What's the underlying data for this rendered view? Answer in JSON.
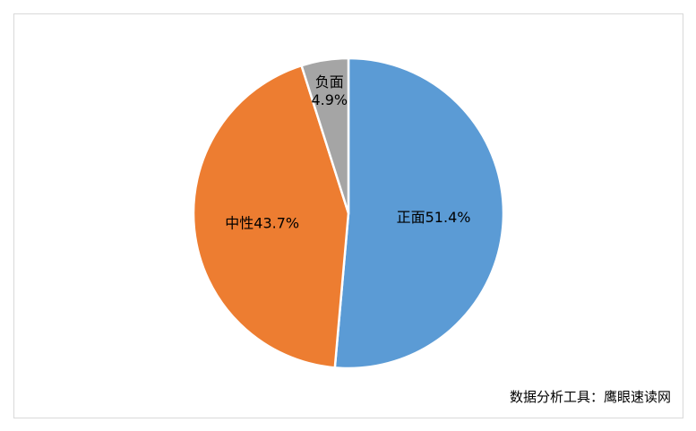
{
  "chart_data": {
    "type": "pie",
    "title": "",
    "slices": [
      {
        "category": "正面",
        "value": 51.4,
        "label": "正面51.4%",
        "color": "#5B9BD5"
      },
      {
        "category": "中性",
        "value": 43.7,
        "label": "中性43.7%",
        "color": "#ED7D31"
      },
      {
        "category": "负面",
        "value": 4.9,
        "label_lines": [
          "负面",
          "4.9%"
        ],
        "color": "#A5A5A5"
      }
    ],
    "start_angle": "12 o'clock",
    "direction": "clockwise",
    "legend": "none"
  },
  "footer": {
    "source_text": "数据分析工具：鹰眼速读网"
  }
}
